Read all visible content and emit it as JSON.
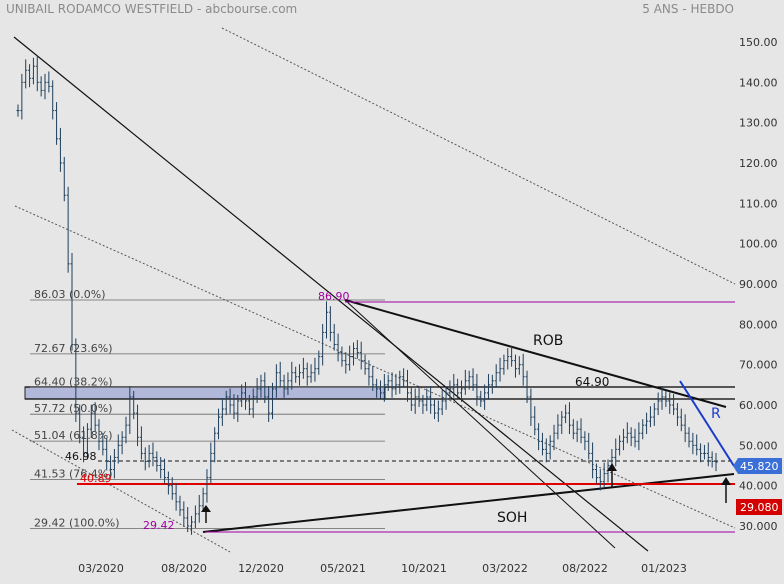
{
  "header": {
    "title": "UNIBAIL RODAMCO WESTFIELD - abcbourse.com",
    "period": "5 ANS - HEBDO"
  },
  "colors": {
    "background": "#e6e6e6",
    "bars": "#1f3f5c",
    "trendline": "#000000",
    "fib_line": "#555555",
    "support_red": "#e00000",
    "magenta": "#a000a0",
    "blue_trend": "#1a3ccc",
    "last_price_badge": "#3b6fd8",
    "low_badge": "#d40000",
    "zone": "#aab0d8"
  },
  "chart_data": {
    "type": "ohlc",
    "x_tick_labels": [
      "03/2020",
      "08/2020",
      "12/2020",
      "05/2021",
      "10/2021",
      "03/2022",
      "08/2022",
      "01/2023"
    ],
    "y_ticks": [
      30,
      40,
      50,
      60,
      70,
      80,
      90,
      100,
      110,
      120,
      130,
      140,
      150
    ],
    "y_tick_labels": [
      "30.000",
      "40.000",
      "50.000",
      "60.000",
      "70.000",
      "80.000",
      "90.000",
      "100.00",
      "110.00",
      "120.00",
      "130.00",
      "140.00",
      "150.00"
    ],
    "ylim": [
      27,
      153
    ],
    "last_price": "45.820",
    "period_low": "29.080",
    "series": [
      {
        "approx_weekly_close": [
          [
            0,
            133
          ],
          [
            1,
            140
          ],
          [
            2,
            143
          ],
          [
            3,
            141
          ],
          [
            4,
            144
          ],
          [
            5,
            140
          ],
          [
            6,
            138
          ],
          [
            7,
            140
          ],
          [
            8,
            139
          ],
          [
            9,
            133
          ],
          [
            10,
            126
          ],
          [
            11,
            120
          ],
          [
            12,
            112
          ],
          [
            13,
            95
          ],
          [
            14,
            75
          ],
          [
            15,
            58
          ],
          [
            16,
            52
          ],
          [
            17,
            48
          ],
          [
            18,
            54
          ],
          [
            19,
            58
          ],
          [
            20,
            55
          ],
          [
            21,
            51
          ],
          [
            22,
            49
          ],
          [
            23,
            46
          ],
          [
            24,
            44
          ],
          [
            25,
            47
          ],
          [
            26,
            50
          ],
          [
            27,
            52
          ],
          [
            28,
            55
          ],
          [
            29,
            62
          ],
          [
            30,
            58
          ],
          [
            31,
            52
          ],
          [
            32,
            48
          ],
          [
            33,
            46
          ],
          [
            34,
            48
          ],
          [
            35,
            47
          ],
          [
            36,
            45
          ],
          [
            37,
            44
          ],
          [
            38,
            42
          ],
          [
            39,
            40
          ],
          [
            40,
            38
          ],
          [
            41,
            36
          ],
          [
            42,
            34
          ],
          [
            43,
            32
          ],
          [
            44,
            30
          ],
          [
            45,
            31
          ],
          [
            46,
            33
          ],
          [
            47,
            35
          ],
          [
            48,
            38
          ],
          [
            49,
            42
          ],
          [
            50,
            48
          ],
          [
            51,
            53
          ],
          [
            52,
            57
          ],
          [
            53,
            59
          ],
          [
            54,
            62
          ],
          [
            55,
            60
          ],
          [
            56,
            58
          ],
          [
            57,
            61
          ],
          [
            58,
            63
          ],
          [
            59,
            61
          ],
          [
            60,
            59
          ],
          [
            61,
            62
          ],
          [
            62,
            64
          ],
          [
            63,
            66
          ],
          [
            64,
            62
          ],
          [
            65,
            58
          ],
          [
            66,
            64
          ],
          [
            67,
            68
          ],
          [
            68,
            66
          ],
          [
            69,
            64
          ],
          [
            70,
            66
          ],
          [
            71,
            68
          ],
          [
            72,
            67
          ],
          [
            73,
            68
          ],
          [
            74,
            69
          ],
          [
            75,
            67
          ],
          [
            76,
            68
          ],
          [
            77,
            69
          ],
          [
            78,
            72
          ],
          [
            79,
            78
          ],
          [
            80,
            83
          ],
          [
            81,
            78
          ],
          [
            82,
            75
          ],
          [
            83,
            73
          ],
          [
            84,
            71
          ],
          [
            85,
            70
          ],
          [
            86,
            72
          ],
          [
            87,
            74
          ],
          [
            88,
            73
          ],
          [
            89,
            71
          ],
          [
            90,
            69
          ],
          [
            91,
            67
          ],
          [
            92,
            65
          ],
          [
            93,
            64
          ],
          [
            94,
            63
          ],
          [
            95,
            65
          ],
          [
            96,
            66
          ],
          [
            97,
            64
          ],
          [
            98,
            65
          ],
          [
            99,
            67
          ],
          [
            100,
            66
          ],
          [
            101,
            63
          ],
          [
            102,
            60
          ],
          [
            103,
            62
          ],
          [
            104,
            61
          ],
          [
            105,
            60
          ],
          [
            106,
            62
          ],
          [
            107,
            60
          ],
          [
            108,
            58
          ],
          [
            109,
            59
          ],
          [
            110,
            61
          ],
          [
            111,
            63
          ],
          [
            112,
            64
          ],
          [
            113,
            65
          ],
          [
            114,
            63
          ],
          [
            115,
            64
          ],
          [
            116,
            66
          ],
          [
            117,
            67
          ],
          [
            118,
            65
          ],
          [
            119,
            62
          ],
          [
            120,
            61
          ],
          [
            121,
            63
          ],
          [
            122,
            65
          ],
          [
            123,
            66
          ],
          [
            124,
            68
          ],
          [
            125,
            69
          ],
          [
            126,
            71
          ],
          [
            127,
            72
          ],
          [
            128,
            71
          ],
          [
            129,
            69
          ],
          [
            130,
            70
          ],
          [
            131,
            67
          ],
          [
            132,
            62
          ],
          [
            133,
            57
          ],
          [
            134,
            54
          ],
          [
            135,
            51
          ],
          [
            136,
            49
          ],
          [
            137,
            48
          ],
          [
            138,
            51
          ],
          [
            139,
            53
          ],
          [
            140,
            55
          ],
          [
            141,
            57
          ],
          [
            142,
            58
          ],
          [
            143,
            55
          ],
          [
            144,
            53
          ],
          [
            145,
            54
          ],
          [
            146,
            52
          ],
          [
            147,
            51
          ],
          [
            148,
            48
          ],
          [
            149,
            44
          ],
          [
            150,
            42
          ],
          [
            151,
            41
          ],
          [
            152,
            43
          ],
          [
            153,
            45
          ],
          [
            154,
            47
          ],
          [
            155,
            49
          ],
          [
            156,
            51
          ],
          [
            157,
            52
          ],
          [
            158,
            53
          ],
          [
            159,
            52
          ],
          [
            160,
            51
          ],
          [
            161,
            53
          ],
          [
            162,
            55
          ],
          [
            163,
            56
          ],
          [
            164,
            57
          ],
          [
            165,
            59
          ],
          [
            166,
            61
          ],
          [
            167,
            62
          ],
          [
            168,
            61
          ],
          [
            169,
            60
          ],
          [
            170,
            59
          ],
          [
            171,
            57
          ],
          [
            172,
            55
          ],
          [
            173,
            53
          ],
          [
            174,
            51
          ],
          [
            175,
            50
          ],
          [
            176,
            49
          ],
          [
            177,
            48
          ],
          [
            178,
            48
          ],
          [
            179,
            47
          ],
          [
            180,
            46
          ],
          [
            181,
            45.82
          ]
        ]
      }
    ]
  },
  "annotations": {
    "fib_labels": [
      "86.03  (0.0%)",
      "72.67  (23.6%)",
      "64.40  (38.2%)",
      "57.72  (50.0%)",
      "51.04  (61.8%)",
      "41.53  (76.4%)",
      "29.42  (100.0%)"
    ],
    "high_label": "86.90",
    "low_label": "29.42",
    "level_46": "46.98",
    "level_40": "40.89",
    "level_65": "64.90",
    "rob_label": "ROB",
    "soh_label": "SOH",
    "r_label": "R"
  }
}
